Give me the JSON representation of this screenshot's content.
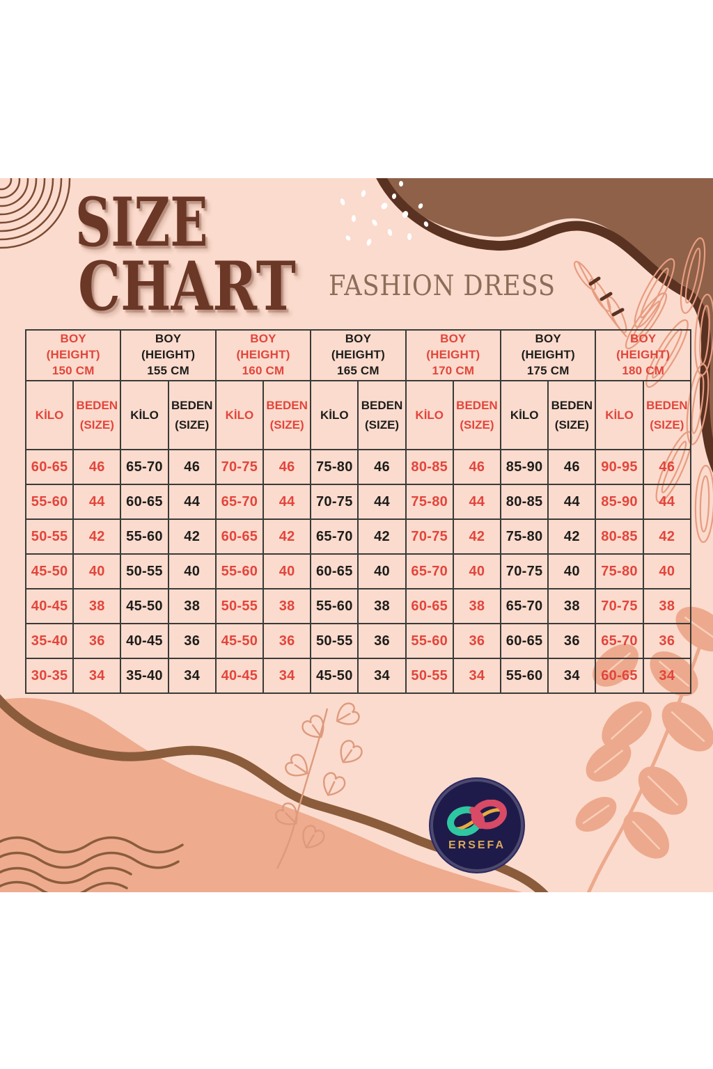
{
  "header": {
    "title_line1": "SIZE",
    "title_line2": "CHART",
    "subtitle": "FASHION DRESS"
  },
  "chart_data": {
    "type": "table",
    "title": "SIZE CHART",
    "subtitle": "FASHION DRESS",
    "legend": "alternating column-group text colors: red for 150/160/170/180 CM, black for 155/165/175 CM",
    "column_groups": [
      {
        "header": "BOY\n(HEIGHT)\n150 CM",
        "color": "red",
        "kilo_header": "KİLO",
        "beden_header": "BEDEN\n(SIZE)",
        "kilo_values": [
          "60-65",
          "55-60",
          "50-55",
          "45-50",
          "40-45",
          "35-40",
          "30-35"
        ],
        "size_values": [
          "46",
          "44",
          "42",
          "40",
          "38",
          "36",
          "34"
        ]
      },
      {
        "header": "BOY\n(HEIGHT)\n155 CM",
        "color": "black",
        "kilo_header": "KİLO",
        "beden_header": "BEDEN\n(SIZE)",
        "kilo_values": [
          "65-70",
          "60-65",
          "55-60",
          "50-55",
          "45-50",
          "40-45",
          "35-40"
        ],
        "size_values": [
          "46",
          "44",
          "42",
          "40",
          "38",
          "36",
          "34"
        ]
      },
      {
        "header": "BOY\n(HEIGHT)\n160 CM",
        "color": "red",
        "kilo_header": "KİLO",
        "beden_header": "BEDEN\n(SIZE)",
        "kilo_values": [
          "70-75",
          "65-70",
          "60-65",
          "55-60",
          "50-55",
          "45-50",
          "40-45"
        ],
        "size_values": [
          "46",
          "44",
          "42",
          "40",
          "38",
          "36",
          "34"
        ]
      },
      {
        "header": "BOY\n(HEIGHT)\n165 CM",
        "color": "black",
        "kilo_header": "KİLO",
        "beden_header": "BEDEN\n(SIZE)",
        "kilo_values": [
          "75-80",
          "70-75",
          "65-70",
          "60-65",
          "55-60",
          "50-55",
          "45-50"
        ],
        "size_values": [
          "46",
          "44",
          "42",
          "40",
          "38",
          "36",
          "34"
        ]
      },
      {
        "header": "BOY\n(HEIGHT)\n170 CM",
        "color": "red",
        "kilo_header": "KİLO",
        "beden_header": "BEDEN\n(SIZE)",
        "kilo_values": [
          "80-85",
          "75-80",
          "70-75",
          "65-70",
          "60-65",
          "55-60",
          "50-55"
        ],
        "size_values": [
          "46",
          "44",
          "42",
          "40",
          "38",
          "36",
          "34"
        ]
      },
      {
        "header": "BOY\n(HEIGHT)\n175 CM",
        "color": "black",
        "kilo_header": "KİLO",
        "beden_header": "BEDEN\n(SIZE)",
        "kilo_values": [
          "85-90",
          "80-85",
          "75-80",
          "70-75",
          "65-70",
          "60-65",
          "55-60"
        ],
        "size_values": [
          "46",
          "44",
          "42",
          "40",
          "38",
          "36",
          "34"
        ]
      },
      {
        "header": "BOY\n(HEIGHT)\n180 CM",
        "color": "red",
        "kilo_header": "KİLO",
        "beden_header": "BEDEN\n(SIZE)",
        "kilo_values": [
          "90-95",
          "85-90",
          "80-85",
          "75-80",
          "70-75",
          "65-70",
          "60-65"
        ],
        "size_values": [
          "46",
          "44",
          "42",
          "40",
          "38",
          "36",
          "34"
        ]
      }
    ]
  },
  "logo": {
    "brand": "ERSEFA"
  },
  "colors": {
    "background_pink": "#fbdbcd",
    "accent_red": "#e2453c",
    "text_black": "#1d1d1b",
    "title_brown": "#6b3726",
    "subtitle_brown": "#8d6c59",
    "blob_brown": "#8e6148",
    "blob_stroke_brown": "#5a3222",
    "salmon_blob": "#eeab8e",
    "wave_brown": "#8a5c3b",
    "leaf_line_salmon": "#e79c80",
    "grid_line": "#3a3a38",
    "logo_navy": "#1e1b4b",
    "logo_gold": "#d9a85a",
    "logo_teal": "#2fc7a1",
    "logo_pink": "#d84a66"
  },
  "decorations": [
    "concentric-circles",
    "brown-blob-top-right",
    "white-confetti",
    "line-art-sprig",
    "palm-leaf-line-art-right",
    "salmon-blob-bottom-left",
    "brown-wave-stroke",
    "thin-wavy-lines",
    "heart-leaf-branch",
    "salmon-leaf-branch-bottom-right"
  ]
}
